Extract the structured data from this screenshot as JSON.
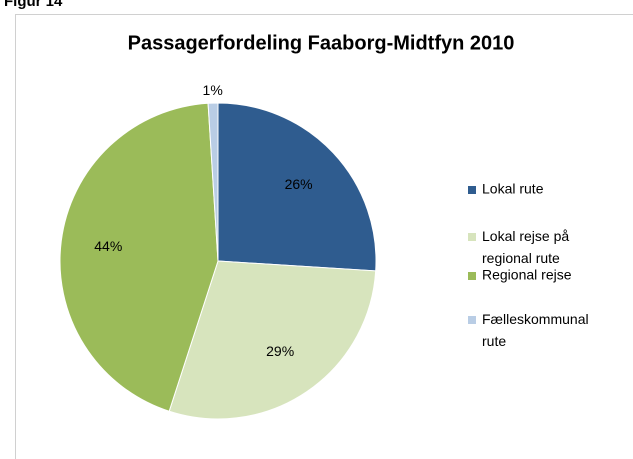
{
  "caption": "Figur 14",
  "chart_data": {
    "type": "pie",
    "title": "Passagerfordeling Faaborg-Midtfyn 2010",
    "categories": [
      "Lokal rute",
      "Lokal rejse på regional rute",
      "Regional rejse",
      "Fælleskommunal rute"
    ],
    "values": [
      26,
      29,
      44,
      1
    ],
    "value_labels": [
      "26%",
      "29%",
      "44%",
      "1%"
    ],
    "colors": [
      "#2f5c8f",
      "#d7e4bd",
      "#9bbb59",
      "#b9cde5"
    ],
    "legend": "right"
  }
}
